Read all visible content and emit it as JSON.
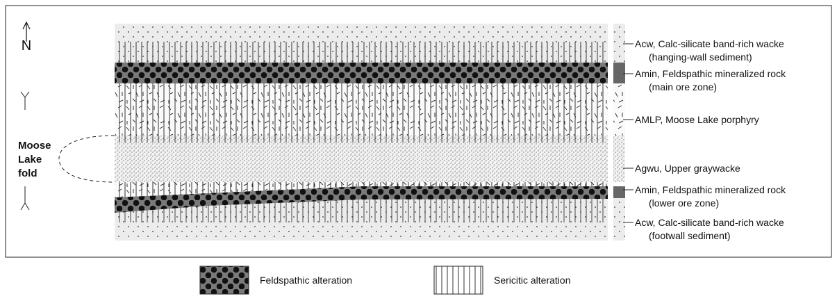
{
  "north": "N",
  "fold_label": [
    "Moose",
    "Lake",
    "fold"
  ],
  "units": [
    {
      "name": "Acw, Calc-silicate band-rich wacke",
      "note": "(hanging-wall sediment)"
    },
    {
      "name": "Amin, Feldspathic mineralized rock",
      "note": "(main ore zone)"
    },
    {
      "name": "AMLP, Moose Lake porphyry"
    },
    {
      "name": "Agwu, Upper graywacke"
    },
    {
      "name": "Amin, Feldspathic mineralized rock",
      "note": "(lower ore zone)"
    },
    {
      "name": "Acw, Calc-silicate band-rich wacke",
      "note": "(footwall sediment)"
    }
  ],
  "legend": [
    "Feldspathic alteration",
    "Sericitic alteration"
  ]
}
